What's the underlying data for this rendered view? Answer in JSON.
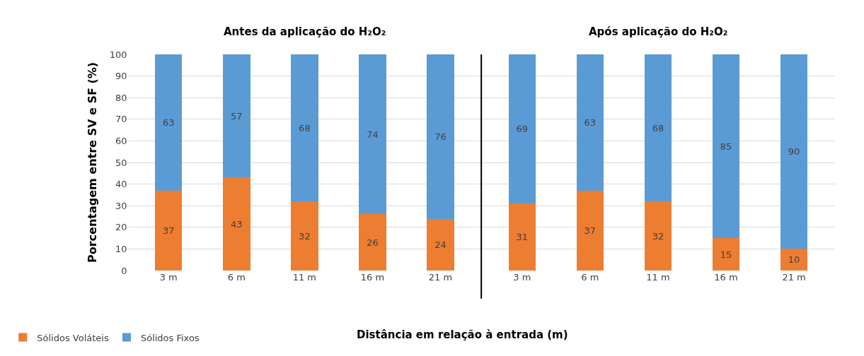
{
  "chart_data": [
    {
      "type": "bar",
      "stacked": true,
      "title": "Antes da aplicação do H₂O₂",
      "ylabel": "Porcentagem entre SV e SF (%)",
      "xlabel": "Distância em relação à entrada (m)",
      "categories": [
        "3 m",
        "6 m",
        "11 m",
        "16 m",
        "21 m"
      ],
      "series": [
        {
          "name": "Sólidos Voláteis",
          "color": "#ed7d31",
          "values": [
            37,
            43,
            32,
            26,
            24
          ]
        },
        {
          "name": "Sólidos Fixos",
          "color": "#5b9bd5",
          "values": [
            63,
            57,
            68,
            74,
            76
          ]
        }
      ],
      "ylim": [
        0,
        100
      ],
      "yticks": [
        0,
        10,
        20,
        30,
        40,
        50,
        60,
        70,
        80,
        90,
        100
      ],
      "grid": "y",
      "data_labels": true,
      "legend": "bottom left"
    },
    {
      "type": "bar",
      "stacked": true,
      "title": "Após aplicação do H₂O₂",
      "categories": [
        "3 m",
        "6 m",
        "11 m",
        "16 m",
        "21 m"
      ],
      "series": [
        {
          "name": "Sólidos Voláteis",
          "color": "#ed7d31",
          "values": [
            31,
            37,
            32,
            15,
            10
          ]
        },
        {
          "name": "Sólidos Fixos",
          "color": "#5b9bd5",
          "values": [
            69,
            63,
            68,
            85,
            90
          ]
        }
      ],
      "ylim": [
        0,
        100
      ],
      "yticks": [
        0,
        10,
        20,
        30,
        40,
        50,
        60,
        70,
        80,
        90,
        100
      ],
      "grid": "y",
      "data_labels": true,
      "tick_labels": "x"
    }
  ]
}
